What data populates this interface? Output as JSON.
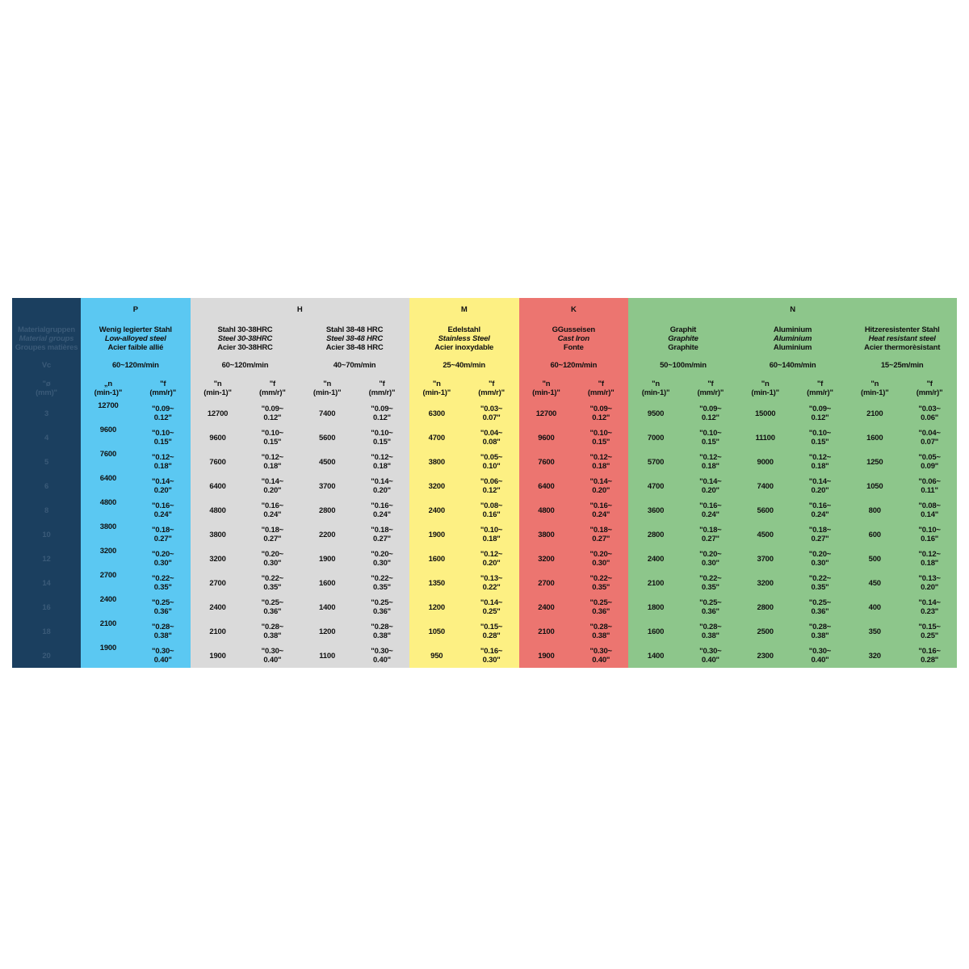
{
  "first_column": {
    "color": "#1b3f5f",
    "header": [
      "Materialgruppen",
      "Material groups",
      "Groupes matières"
    ],
    "vc_label": "Vc",
    "d_label": "\"ø\n(mm)\"",
    "diameters": [
      "3",
      "4",
      "5",
      "6",
      "8",
      "10",
      "12",
      "14",
      "16",
      "18",
      "20"
    ]
  },
  "groups": [
    {
      "letter": "P",
      "color": "#5bc8f2",
      "materials": [
        {
          "de": "Wenig legierter Stahl",
          "en": "Low-alloyed steel",
          "fr": "Acier faible allié",
          "vc": "60~120m/min",
          "n_label": "„n\n(min-1)\"",
          "f_label": "\"f\n(mm/r)\"",
          "n": [
            "12700",
            "9600",
            "7600",
            "6400",
            "4800",
            "3800",
            "3200",
            "2700",
            "2400",
            "2100",
            "1900"
          ],
          "f": [
            "\"0.09~\n0.12\"",
            "\"0.10~\n0.15\"",
            "\"0.12~\n0.18\"",
            "\"0.14~\n0.20\"",
            "\"0.16~\n0.24\"",
            "\"0.18~\n0.27\"",
            "\"0.20~\n0.30\"",
            "\"0.22~\n0.35\"",
            "\"0.25~\n0.36\"",
            "\"0.28~\n0.38\"",
            "\"0.30~\n0.40\""
          ]
        }
      ]
    },
    {
      "letter": "H",
      "color": "#dadada",
      "materials": [
        {
          "de": "Stahl 30-38HRC",
          "en": "Steel 30-38HRC",
          "fr": "Acier 30-38HRC",
          "vc": "60~120m/min",
          "n_label": "\"n\n(min-1)\"",
          "f_label": "\"f\n(mm/r)\"",
          "n": [
            "12700",
            "9600",
            "7600",
            "6400",
            "4800",
            "3800",
            "3200",
            "2700",
            "2400",
            "2100",
            "1900"
          ],
          "f": [
            "\"0.09~\n0.12\"",
            "\"0.10~\n0.15\"",
            "\"0.12~\n0.18\"",
            "\"0.14~\n0.20\"",
            "\"0.16~\n0.24\"",
            "\"0.18~\n0.27\"",
            "\"0.20~\n0.30\"",
            "\"0.22~\n0.35\"",
            "\"0.25~\n0.36\"",
            "\"0.28~\n0.38\"",
            "\"0.30~\n0.40\""
          ]
        },
        {
          "de": "Stahl 38-48 HRC",
          "en": "Steel 38-48 HRC",
          "fr": "Acier 38-48 HRC",
          "vc": "40~70m/min",
          "n_label": "\"n\n(min-1)\"",
          "f_label": "\"f\n(mm/r)\"",
          "n": [
            "7400",
            "5600",
            "4500",
            "3700",
            "2800",
            "2200",
            "1900",
            "1600",
            "1400",
            "1200",
            "1100"
          ],
          "f": [
            "\"0.09~\n0.12\"",
            "\"0.10~\n0.15\"",
            "\"0.12~\n0.18\"",
            "\"0.14~\n0.20\"",
            "\"0.16~\n0.24\"",
            "\"0.18~\n0.27\"",
            "\"0.20~\n0.30\"",
            "\"0.22~\n0.35\"",
            "\"0.25~\n0.36\"",
            "\"0.28~\n0.38\"",
            "\"0.30~\n0.40\""
          ]
        }
      ]
    },
    {
      "letter": "M",
      "color": "#fdf083",
      "materials": [
        {
          "de": "Edelstahl",
          "en": "Stainless Steel",
          "fr": "Acier inoxydable",
          "vc": "25~40m/min",
          "n_label": "\"n\n(min-1)\"",
          "f_label": "\"f\n(mm/r)\"",
          "n": [
            "6300",
            "4700",
            "3800",
            "3200",
            "2400",
            "1900",
            "1600",
            "1350",
            "1200",
            "1050",
            "950"
          ],
          "f": [
            "\"0.03~\n0.07\"",
            "\"0.04~\n0.08\"",
            "\"0.05~\n0.10\"",
            "\"0.06~\n0.12\"",
            "\"0.08~\n0.16\"",
            "\"0.10~\n0.18\"",
            "\"0.12~\n0.20\"",
            "\"0.13~\n0.22\"",
            "\"0.14~\n0.25\"",
            "\"0.15~\n0.28\"",
            "\"0.16~\n0.30\""
          ]
        }
      ]
    },
    {
      "letter": "K",
      "color": "#ec7570",
      "materials": [
        {
          "de": "GGusseisen",
          "en": "Cast Iron",
          "fr": "Fonte",
          "vc": "60~120m/min",
          "n_label": "\"n\n(min-1)\"",
          "f_label": "\"f\n(mm/r)\"",
          "n": [
            "12700",
            "9600",
            "7600",
            "6400",
            "4800",
            "3800",
            "3200",
            "2700",
            "2400",
            "2100",
            "1900"
          ],
          "f": [
            "\"0.09~\n0.12\"",
            "\"0.10~\n0.15\"",
            "\"0.12~\n0.18\"",
            "\"0.14~\n0.20\"",
            "\"0.16~\n0.24\"",
            "\"0.18~\n0.27\"",
            "\"0.20~\n0.30\"",
            "\"0.22~\n0.35\"",
            "\"0.25~\n0.36\"",
            "\"0.28~\n0.38\"",
            "\"0.30~\n0.40\""
          ]
        }
      ]
    },
    {
      "letter": "N",
      "color": "#8dc68b",
      "materials": [
        {
          "de": "Graphit",
          "en": "Graphite",
          "fr": "Graphite",
          "vc": "50~100m/min",
          "n_label": "\"n\n(min-1)\"",
          "f_label": "\"f\n(mm/r)\"",
          "n": [
            "9500",
            "7000",
            "5700",
            "4700",
            "3600",
            "2800",
            "2400",
            "2100",
            "1800",
            "1600",
            "1400"
          ],
          "f": [
            "\"0.09~\n0.12\"",
            "\"0.10~\n0.15\"",
            "\"0.12~\n0.18\"",
            "\"0.14~\n0.20\"",
            "\"0.16~\n0.24\"",
            "\"0.18~\n0.27\"",
            "\"0.20~\n0.30\"",
            "\"0.22~\n0.35\"",
            "\"0.25~\n0.36\"",
            "\"0.28~\n0.38\"",
            "\"0.30~\n0.40\""
          ]
        },
        {
          "de": "Aluminium",
          "en": "Aluminium",
          "fr": "Aluminium",
          "vc": "60~140m/min",
          "n_label": "\"n\n(min-1)\"",
          "f_label": "\"f\n(mm/r)\"",
          "n": [
            "15000",
            "11100",
            "9000",
            "7400",
            "5600",
            "4500",
            "3700",
            "3200",
            "2800",
            "2500",
            "2300"
          ],
          "f": [
            "\"0.09~\n0.12\"",
            "\"0.10~\n0.15\"",
            "\"0.12~\n0.18\"",
            "\"0.14~\n0.20\"",
            "\"0.16~\n0.24\"",
            "\"0.18~\n0.27\"",
            "\"0.20~\n0.30\"",
            "\"0.22~\n0.35\"",
            "\"0.25~\n0.36\"",
            "\"0.28~\n0.38\"",
            "\"0.30~\n0.40\""
          ]
        },
        {
          "de": "Hitzeresistenter Stahl",
          "en": "Heat resistant steel",
          "fr": "Acier thermorèsistant",
          "vc": "15~25m/min",
          "n_label": "\"n\n(min-1)\"",
          "f_label": "\"f\n(mm/r)\"",
          "n": [
            "2100",
            "1600",
            "1250",
            "1050",
            "800",
            "600",
            "500",
            "450",
            "400",
            "350",
            "320"
          ],
          "f": [
            "\"0.03~\n0.06\"",
            "\"0.04~\n0.07\"",
            "\"0.05~\n0.09\"",
            "\"0.06~\n0.11\"",
            "\"0.08~\n0.14\"",
            "\"0.10~\n0.16\"",
            "\"0.12~\n0.18\"",
            "\"0.13~\n0.20\"",
            "\"0.14~\n0.23\"",
            "\"0.15~\n0.25\"",
            "\"0.16~\n0.28\""
          ]
        }
      ]
    }
  ]
}
